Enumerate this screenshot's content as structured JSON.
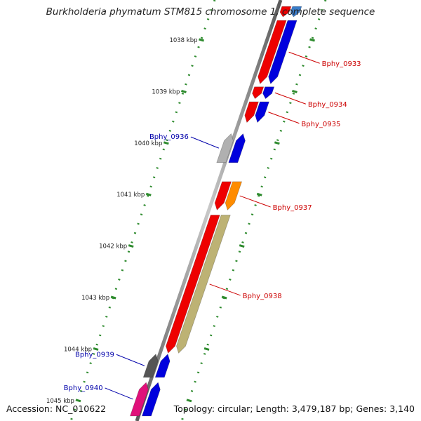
{
  "header": {
    "title": "Burkholderia phymatum STM815 chromosome 1, complete sequence"
  },
  "footer": {
    "accession_label": "Accession:",
    "accession": "NC_010622",
    "topology_label": "Topology:",
    "topology": "circular;",
    "length_label": "Length:",
    "length": "3,479,187 bp;",
    "genes_label": "Genes:",
    "genes": "3,140"
  },
  "colors": {
    "backbone": "#8a8a8a",
    "tick": "#2e8b2e",
    "forward_label": "#cc0000",
    "reverse_label": "#0000aa"
  },
  "ticks": [
    {
      "kbp": 1038,
      "label": "1038 kbp"
    },
    {
      "kbp": 1039,
      "label": "1039 kbp"
    },
    {
      "kbp": 1040,
      "label": "1040 kbp"
    },
    {
      "kbp": 1041,
      "label": "1041 kbp"
    },
    {
      "kbp": 1042,
      "label": "1042 kbp"
    },
    {
      "kbp": 1043,
      "label": "1043 kbp"
    },
    {
      "kbp": 1044,
      "label": "1044 kbp"
    },
    {
      "kbp": 1045,
      "label": "1045 kbp"
    }
  ],
  "genes": [
    {
      "id": "Bphy_0932",
      "label": "",
      "strand": "+",
      "start_kbp": 1037.35,
      "end_kbp": 1037.55,
      "colors": [
        "#ee0000",
        "#3a7cc8"
      ]
    },
    {
      "id": "Bphy_0933",
      "label": "Bphy_0933",
      "strand": "+",
      "start_kbp": 1037.62,
      "end_kbp": 1038.85,
      "colors": [
        "#ee0000",
        "#0000dd"
      ]
    },
    {
      "id": "Bphy_0934",
      "label": "Bphy_0934",
      "strand": "+",
      "start_kbp": 1038.91,
      "end_kbp": 1039.14,
      "colors": [
        "#ee0000",
        "#0000dd"
      ]
    },
    {
      "id": "Bphy_0935",
      "label": "Bphy_0935",
      "strand": "+",
      "start_kbp": 1039.2,
      "end_kbp": 1039.6,
      "colors": [
        "#ee0000",
        "#0000dd"
      ]
    },
    {
      "id": "Bphy_0936",
      "label": "Bphy_0936",
      "strand": "-",
      "start_kbp": 1039.82,
      "end_kbp": 1040.38,
      "colors": [
        "#b0b0b0",
        "#0000dd"
      ]
    },
    {
      "id": "Bphy_0937",
      "label": "Bphy_0937",
      "strand": "+",
      "start_kbp": 1040.75,
      "end_kbp": 1041.3,
      "colors": [
        "#ee0000",
        "#ff8c00"
      ]
    },
    {
      "id": "Bphy_0938",
      "label": "Bphy_0938",
      "strand": "+",
      "start_kbp": 1041.4,
      "end_kbp": 1044.08,
      "colors": [
        "#ee0000",
        "#bdb274"
      ]
    },
    {
      "id": "Bphy_0939",
      "label": "Bphy_0939",
      "strand": "-",
      "start_kbp": 1044.1,
      "end_kbp": 1044.55,
      "colors": [
        "#555555",
        "#0000dd"
      ]
    },
    {
      "id": "Bphy_0940",
      "label": "Bphy_0940",
      "strand": "-",
      "start_kbp": 1044.65,
      "end_kbp": 1045.3,
      "colors": [
        "#e0107a",
        "#0000dd"
      ]
    }
  ]
}
